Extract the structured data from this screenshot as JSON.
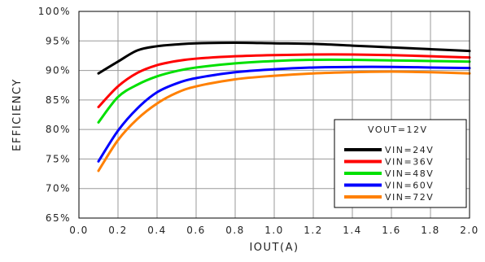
{
  "chart_data": {
    "type": "line",
    "title": "",
    "xlabel": "IOUT(A)",
    "ylabel": "EFFICIENCY",
    "xlim": [
      0.0,
      2.0
    ],
    "ylim": [
      65,
      100
    ],
    "x_ticks": [
      "0.0",
      "0.2",
      "0.4",
      "0.6",
      "0.8",
      "1.0",
      "1.2",
      "1.4",
      "1.6",
      "1.8",
      "2.0"
    ],
    "y_ticks": [
      "65%",
      "70%",
      "75%",
      "80%",
      "85%",
      "90%",
      "95%",
      "100%"
    ],
    "grid": true,
    "legend_placement": "bottom-right",
    "legend_title": "VOUT=12V",
    "x": [
      0.1,
      0.2,
      0.3,
      0.4,
      0.5,
      0.6,
      0.8,
      1.0,
      1.2,
      1.4,
      1.6,
      1.8,
      2.0
    ],
    "series": [
      {
        "name": "VIN=24V",
        "color": "#000000",
        "values": [
          89.5,
          91.5,
          93.4,
          94.1,
          94.4,
          94.6,
          94.7,
          94.6,
          94.5,
          94.2,
          93.9,
          93.6,
          93.3
        ]
      },
      {
        "name": "VIN=36V",
        "color": "#ff0000",
        "values": [
          83.8,
          87.3,
          89.6,
          90.9,
          91.6,
          92.0,
          92.4,
          92.6,
          92.7,
          92.7,
          92.6,
          92.4,
          92.2
        ]
      },
      {
        "name": "VIN=48V",
        "color": "#00e000",
        "values": [
          81.2,
          85.5,
          87.6,
          89.0,
          89.9,
          90.5,
          91.2,
          91.6,
          91.8,
          91.8,
          91.7,
          91.6,
          91.5
        ]
      },
      {
        "name": "VIN=60V",
        "color": "#0000ff",
        "values": [
          74.6,
          79.8,
          83.6,
          86.3,
          87.8,
          88.7,
          89.7,
          90.2,
          90.5,
          90.6,
          90.6,
          90.5,
          90.4
        ]
      },
      {
        "name": "VIN=72V",
        "color": "#ff8000",
        "values": [
          73.0,
          78.2,
          81.8,
          84.4,
          86.2,
          87.3,
          88.5,
          89.1,
          89.5,
          89.7,
          89.8,
          89.7,
          89.5
        ]
      }
    ]
  }
}
